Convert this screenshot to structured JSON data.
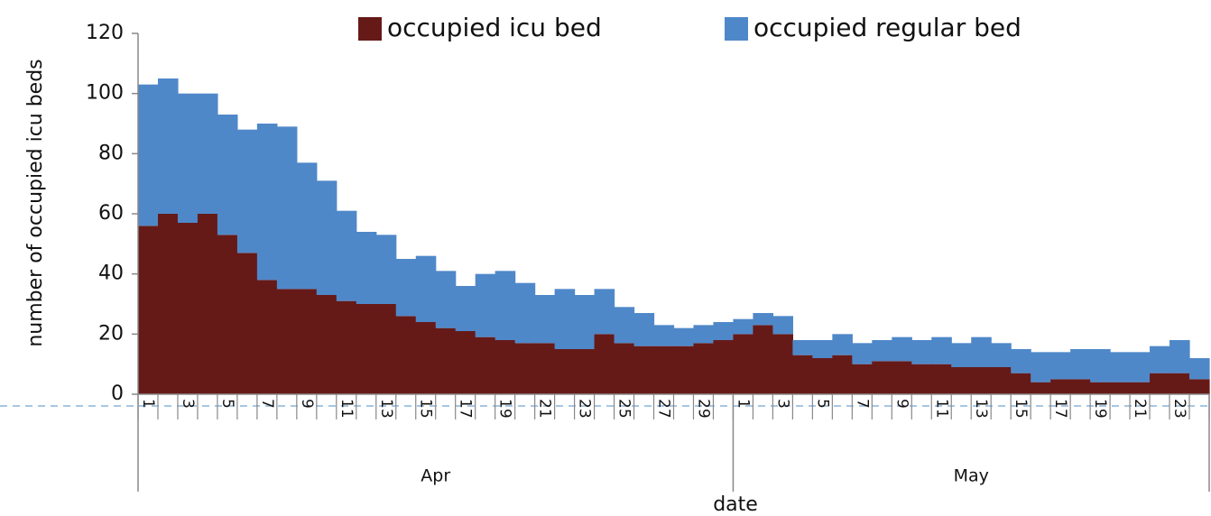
{
  "chart_data": {
    "type": "stacked_bar",
    "ylabel": "number of occupied icu beds",
    "xlabel": "date",
    "categories": [
      "1",
      null,
      "3",
      null,
      "5",
      null,
      "7",
      null,
      "9",
      null,
      "11",
      null,
      "13",
      null,
      "15",
      null,
      "17",
      null,
      "19",
      null,
      "21",
      null,
      "23",
      null,
      "25",
      null,
      "27",
      null,
      "29",
      null,
      "1",
      null,
      "3",
      null,
      "5",
      null,
      "7",
      null,
      "9",
      null,
      "11",
      null,
      "13",
      null,
      "15",
      null,
      "17",
      null,
      "19",
      null,
      "21",
      null,
      "23",
      null
    ],
    "x_groups": [
      {
        "label": "Apr",
        "span": 30
      },
      {
        "label": "May",
        "span": 24
      }
    ],
    "series": [
      {
        "name": "occupied icu bed",
        "color": "#661a18",
        "values": [
          56,
          60,
          57,
          60,
          53,
          47,
          38,
          35,
          35,
          33,
          31,
          30,
          30,
          26,
          24,
          22,
          21,
          19,
          18,
          17,
          17,
          15,
          15,
          20,
          17,
          16,
          16,
          16,
          17,
          18,
          20,
          23,
          20,
          13,
          12,
          13,
          10,
          11,
          11,
          10,
          10,
          9,
          9,
          9,
          7,
          4,
          5,
          5,
          4,
          4,
          4,
          7,
          7,
          5
        ]
      },
      {
        "name": "occupied regular bed",
        "color": "#4f88c9",
        "values": [
          47,
          45,
          43,
          40,
          40,
          41,
          52,
          54,
          42,
          38,
          30,
          24,
          23,
          19,
          22,
          19,
          15,
          21,
          23,
          20,
          16,
          20,
          18,
          15,
          12,
          11,
          7,
          6,
          6,
          6,
          5,
          4,
          6,
          5,
          6,
          7,
          7,
          7,
          8,
          8,
          9,
          8,
          10,
          8,
          8,
          10,
          9,
          10,
          11,
          10,
          10,
          9,
          11,
          7
        ]
      }
    ],
    "ylim": [
      0,
      120
    ],
    "yticks": [
      0,
      20,
      40,
      60,
      80,
      100,
      120
    ],
    "grid": false,
    "legend": "top"
  }
}
